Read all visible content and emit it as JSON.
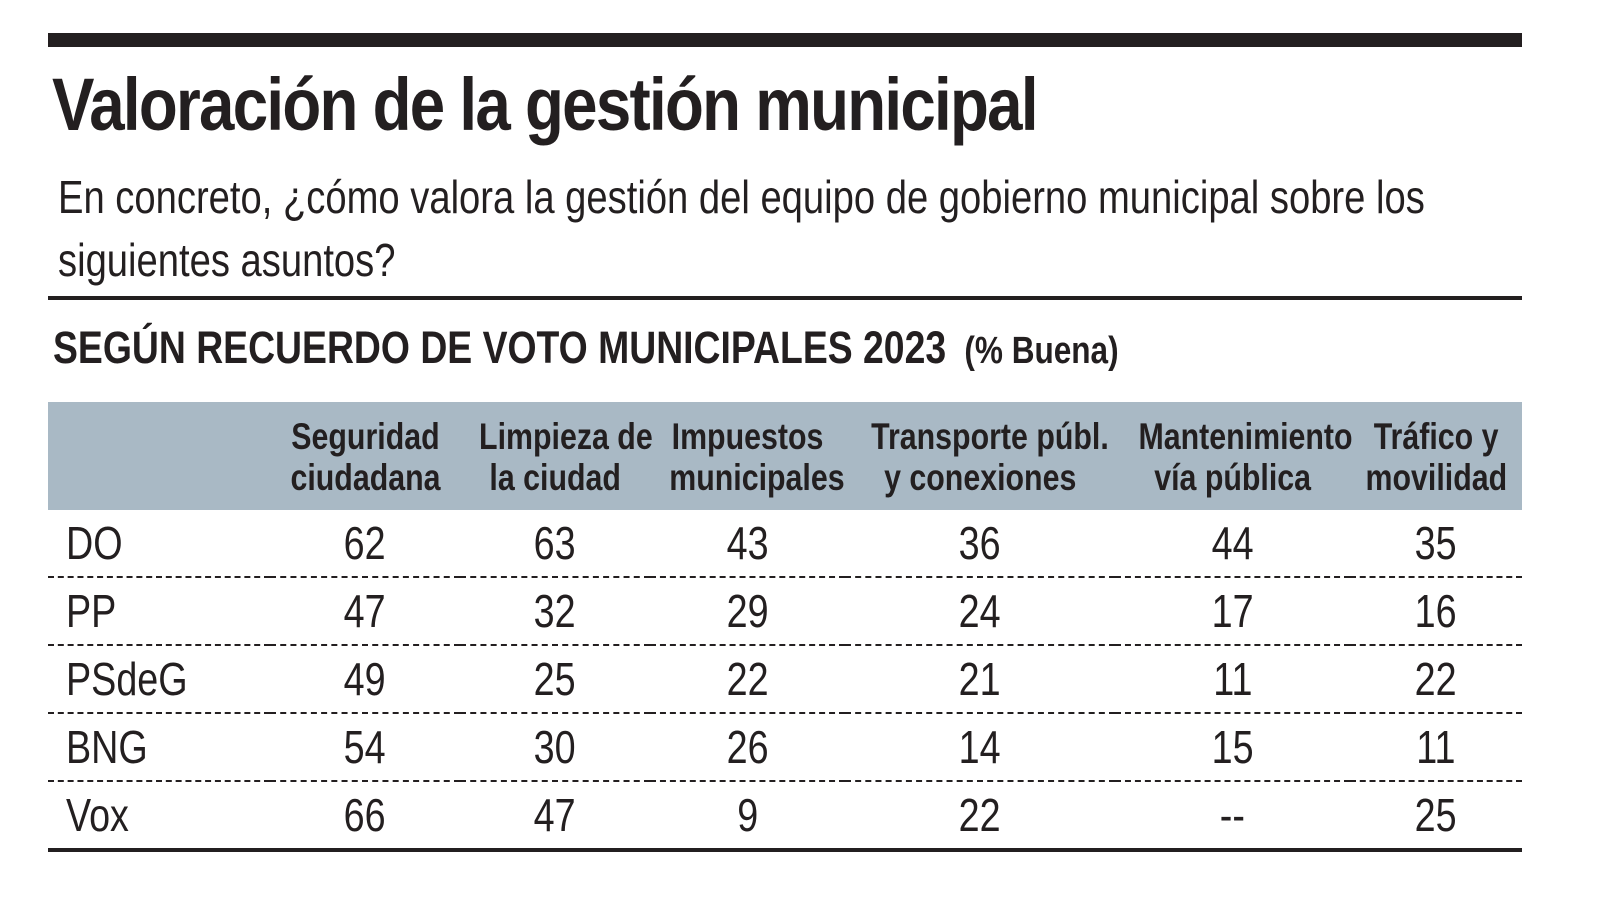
{
  "header": {
    "title": "Valoración de la gestión municipal",
    "subtitle": "En concreto, ¿cómo valora la gestión del equipo de gobierno municipal sobre los siguientes asuntos?",
    "section": "SEGÚN RECUERDO DE VOTO MUNICIPALES 2023",
    "unit": "(% Buena)"
  },
  "colors": {
    "header_bg": "#a9b9c5",
    "text": "#231f20"
  },
  "chart_data": {
    "type": "table",
    "columns": [
      [
        "Seguridad",
        "ciudadana"
      ],
      [
        "Limpieza de",
        "la ciudad"
      ],
      [
        "Impuestos",
        "municipales"
      ],
      [
        "Transporte públ.",
        "y conexiones"
      ],
      [
        "Mantenimiento",
        "vía pública"
      ],
      [
        "Tráfico y",
        "movilidad"
      ]
    ],
    "rows": [
      {
        "label": "DO",
        "values": [
          "62",
          "63",
          "43",
          "36",
          "44",
          "35"
        ]
      },
      {
        "label": "PP",
        "values": [
          "47",
          "32",
          "29",
          "24",
          "17",
          "16"
        ]
      },
      {
        "label": "PSdeG",
        "values": [
          "49",
          "25",
          "22",
          "21",
          "11",
          "22"
        ]
      },
      {
        "label": "BNG",
        "values": [
          "54",
          "30",
          "26",
          "14",
          "15",
          "11"
        ]
      },
      {
        "label": "Vox",
        "values": [
          "66",
          "47",
          "9",
          "22",
          "--",
          "25"
        ]
      }
    ]
  }
}
